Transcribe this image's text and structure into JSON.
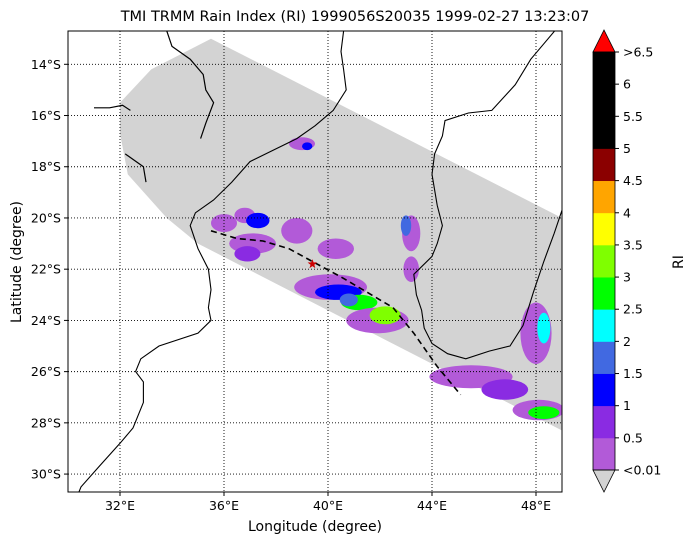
{
  "title": "TMI TRMM Rain Index (RI) 1999056S20035 1999-02-27 13:23:07",
  "xlabel": "Longitude (degree)",
  "ylabel": "Latitude (degree)",
  "colorbar_label": "RI",
  "map": {
    "lon_range": [
      30.0,
      49.0
    ],
    "lat_range": [
      -30.7,
      -12.7
    ],
    "lon_ticks": [
      {
        "value": 32,
        "label": "32°E"
      },
      {
        "value": 36,
        "label": "36°E"
      },
      {
        "value": 40,
        "label": "40°E"
      },
      {
        "value": 44,
        "label": "44°E"
      },
      {
        "value": 48,
        "label": "48°E"
      }
    ],
    "lat_ticks": [
      {
        "value": -14,
        "label": "14°S"
      },
      {
        "value": -16,
        "label": "16°S"
      },
      {
        "value": -18,
        "label": "18°S"
      },
      {
        "value": -20,
        "label": "20°S"
      },
      {
        "value": -22,
        "label": "22°S"
      },
      {
        "value": -24,
        "label": "24°S"
      },
      {
        "value": -26,
        "label": "26°S"
      },
      {
        "value": -28,
        "label": "28°S"
      },
      {
        "value": -30,
        "label": "30°S"
      }
    ],
    "grid": "dotted",
    "swath_color": "#d3d3d3",
    "swath_polygon": [
      [
        35.5,
        -13.0
      ],
      [
        49.0,
        -20.0
      ],
      [
        49.0,
        -28.3
      ],
      [
        35.0,
        -21.0
      ],
      [
        33.8,
        -20.0
      ],
      [
        32.3,
        -18.3
      ],
      [
        32.0,
        -16.7
      ],
      [
        32.0,
        -15.5
      ],
      [
        33.2,
        -14.2
      ]
    ],
    "coastline_color": "#000000",
    "coastlines": [
      [
        [
          40.6,
          -12.7
        ],
        [
          40.5,
          -13.5
        ],
        [
          40.6,
          -14.2
        ],
        [
          40.7,
          -15.0
        ],
        [
          40.2,
          -15.8
        ],
        [
          39.5,
          -16.4
        ],
        [
          38.8,
          -16.9
        ],
        [
          37.8,
          -17.4
        ],
        [
          37.0,
          -17.8
        ],
        [
          36.3,
          -18.6
        ],
        [
          35.6,
          -19.3
        ],
        [
          34.9,
          -19.8
        ],
        [
          34.7,
          -20.3
        ],
        [
          35.0,
          -21.2
        ],
        [
          35.4,
          -22.0
        ],
        [
          35.5,
          -22.8
        ],
        [
          35.4,
          -23.5
        ],
        [
          35.5,
          -24.0
        ],
        [
          35.0,
          -24.5
        ],
        [
          33.5,
          -25.0
        ],
        [
          32.8,
          -25.5
        ],
        [
          32.6,
          -26.0
        ],
        [
          32.9,
          -26.4
        ],
        [
          32.9,
          -27.2
        ],
        [
          32.5,
          -28.2
        ],
        [
          32.0,
          -28.8
        ],
        [
          31.2,
          -29.7
        ],
        [
          30.5,
          -30.5
        ],
        [
          30.3,
          -31.0
        ]
      ],
      [
        [
          49.3,
          -12.4
        ],
        [
          49.6,
          -13.2
        ],
        [
          49.9,
          -14.4
        ],
        [
          50.2,
          -15.8
        ],
        [
          49.8,
          -16.8
        ],
        [
          49.5,
          -18.0
        ],
        [
          49.1,
          -19.4
        ],
        [
          48.7,
          -20.6
        ],
        [
          48.3,
          -21.7
        ],
        [
          47.9,
          -22.9
        ],
        [
          47.5,
          -24.2
        ],
        [
          47.0,
          -25.0
        ],
        [
          46.2,
          -25.2
        ],
        [
          45.3,
          -25.5
        ],
        [
          44.6,
          -25.3
        ],
        [
          44.0,
          -24.9
        ],
        [
          43.7,
          -24.3
        ],
        [
          43.6,
          -23.6
        ],
        [
          43.4,
          -23.0
        ],
        [
          43.3,
          -22.2
        ],
        [
          44.0,
          -21.5
        ],
        [
          44.2,
          -21.0
        ],
        [
          44.4,
          -20.3
        ],
        [
          44.2,
          -19.5
        ],
        [
          44.0,
          -18.3
        ],
        [
          44.1,
          -17.5
        ],
        [
          44.4,
          -16.8
        ],
        [
          44.5,
          -16.2
        ],
        [
          45.4,
          -15.9
        ],
        [
          46.3,
          -15.8
        ],
        [
          47.2,
          -14.8
        ],
        [
          47.8,
          -13.8
        ],
        [
          48.3,
          -13.2
        ],
        [
          48.8,
          -12.6
        ],
        [
          49.2,
          -12.3
        ]
      ]
    ],
    "inland_lines": [
      [
        [
          33.8,
          -12.7
        ],
        [
          34.0,
          -13.3
        ],
        [
          34.7,
          -13.8
        ],
        [
          35.2,
          -14.4
        ],
        [
          35.3,
          -15.0
        ],
        [
          35.6,
          -15.5
        ],
        [
          35.3,
          -16.3
        ],
        [
          35.1,
          -16.9
        ]
      ],
      [
        [
          31.0,
          -15.7
        ],
        [
          31.6,
          -15.7
        ],
        [
          32.1,
          -15.6
        ],
        [
          32.4,
          -15.8
        ]
      ],
      [
        [
          32.2,
          -17.5
        ],
        [
          32.9,
          -18.0
        ],
        [
          33.0,
          -18.6
        ]
      ]
    ],
    "track": [
      [
        35.5,
        -20.5
      ],
      [
        36.5,
        -20.8
      ],
      [
        37.5,
        -20.9
      ],
      [
        38.5,
        -21.2
      ],
      [
        39.4,
        -21.7
      ],
      [
        40.5,
        -22.3
      ],
      [
        41.5,
        -22.9
      ],
      [
        42.5,
        -23.5
      ],
      [
        43.3,
        -24.5
      ],
      [
        44.2,
        -25.8
      ],
      [
        45.1,
        -26.9
      ]
    ],
    "storm_position": {
      "lon": 39.4,
      "lat": -21.8,
      "marker": "star",
      "color": "#cc0000"
    },
    "rain_clusters": [
      {
        "lon": 36.0,
        "lat": -20.2,
        "rx": 0.5,
        "ry": 0.35,
        "ri": 0.3
      },
      {
        "lon": 36.8,
        "lat": -19.9,
        "rx": 0.4,
        "ry": 0.3,
        "ri": 0.3
      },
      {
        "lon": 37.3,
        "lat": -20.1,
        "rx": 0.45,
        "ry": 0.3,
        "ri": 1.2
      },
      {
        "lon": 37.1,
        "lat": -21.0,
        "rx": 0.9,
        "ry": 0.4,
        "ri": 0.3
      },
      {
        "lon": 36.9,
        "lat": -21.4,
        "rx": 0.5,
        "ry": 0.3,
        "ri": 0.8
      },
      {
        "lon": 38.8,
        "lat": -20.5,
        "rx": 0.6,
        "ry": 0.5,
        "ri": 0.3
      },
      {
        "lon": 40.3,
        "lat": -21.2,
        "rx": 0.7,
        "ry": 0.4,
        "ri": 0.3
      },
      {
        "lon": 40.1,
        "lat": -22.7,
        "rx": 1.4,
        "ry": 0.5,
        "ri": 0.3
      },
      {
        "lon": 40.4,
        "lat": -22.9,
        "rx": 0.9,
        "ry": 0.3,
        "ri": 1.2
      },
      {
        "lon": 41.2,
        "lat": -23.3,
        "rx": 0.7,
        "ry": 0.3,
        "ri": 2.7
      },
      {
        "lon": 41.9,
        "lat": -24.0,
        "rx": 1.2,
        "ry": 0.5,
        "ri": 0.3
      },
      {
        "lon": 42.2,
        "lat": -23.8,
        "rx": 0.6,
        "ry": 0.35,
        "ri": 3.2
      },
      {
        "lon": 40.8,
        "lat": -23.2,
        "rx": 0.35,
        "ry": 0.25,
        "ri": 1.7
      },
      {
        "lon": 43.2,
        "lat": -20.6,
        "rx": 0.35,
        "ry": 0.7,
        "ri": 0.3
      },
      {
        "lon": 43.0,
        "lat": -20.3,
        "rx": 0.2,
        "ry": 0.4,
        "ri": 1.7
      },
      {
        "lon": 43.2,
        "lat": -22.0,
        "rx": 0.3,
        "ry": 0.5,
        "ri": 0.3
      },
      {
        "lon": 45.5,
        "lat": -26.2,
        "rx": 1.6,
        "ry": 0.45,
        "ri": 0.3
      },
      {
        "lon": 46.8,
        "lat": -26.7,
        "rx": 0.9,
        "ry": 0.4,
        "ri": 0.8
      },
      {
        "lon": 48.0,
        "lat": -24.5,
        "rx": 0.6,
        "ry": 1.2,
        "ri": 0.3
      },
      {
        "lon": 48.3,
        "lat": -24.3,
        "rx": 0.25,
        "ry": 0.6,
        "ri": 2.2
      },
      {
        "lon": 48.1,
        "lat": -27.5,
        "rx": 1.0,
        "ry": 0.4,
        "ri": 0.3
      },
      {
        "lon": 48.3,
        "lat": -27.6,
        "rx": 0.6,
        "ry": 0.25,
        "ri": 2.8
      },
      {
        "lon": 39.0,
        "lat": -17.1,
        "rx": 0.5,
        "ry": 0.25,
        "ri": 0.3
      },
      {
        "lon": 39.2,
        "lat": -17.2,
        "rx": 0.2,
        "ry": 0.15,
        "ri": 1.2
      }
    ]
  },
  "colorbar": {
    "bounds": [
      0.01,
      0.5,
      1,
      1.5,
      2,
      2.5,
      3,
      3.5,
      4,
      4.5,
      5,
      5.5,
      6,
      6.5
    ],
    "colors": [
      "#b25ad8",
      "#8a2be2",
      "#0000ff",
      "#4169e1",
      "#00ffff",
      "#00ff00",
      "#7fff00",
      "#ffff00",
      "#ffa500",
      "#8b0000",
      "#000000",
      "#000000",
      "#000000"
    ],
    "over_color": "#ff0000",
    "under_color": "#d3d3d3",
    "tick_labels": [
      "<0.01",
      "0.5",
      "1",
      "1.5",
      "2",
      "2.5",
      "3",
      "3.5",
      "4",
      "4.5",
      "5",
      "5.5",
      "6",
      ">6.5"
    ]
  }
}
